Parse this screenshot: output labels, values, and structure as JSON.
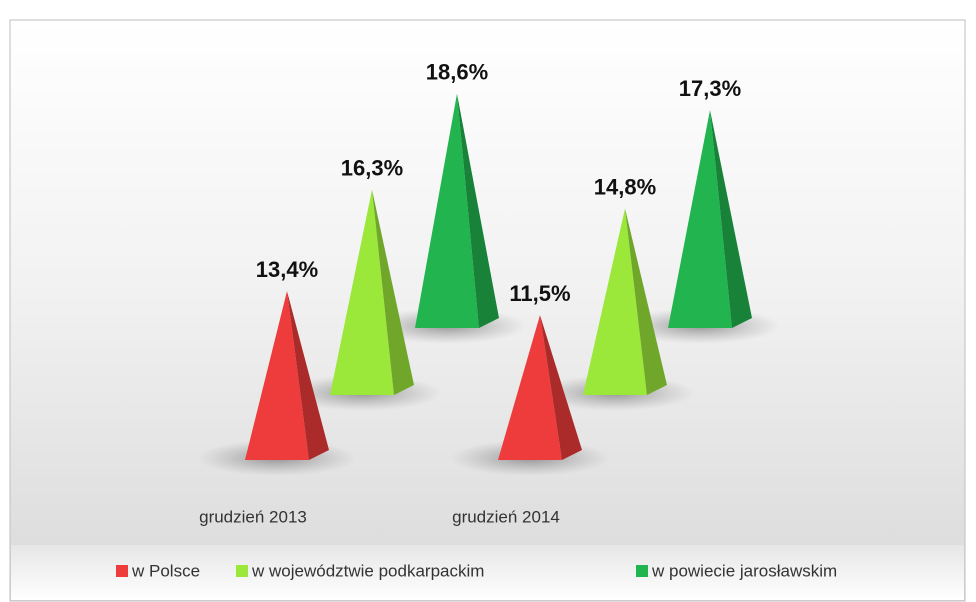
{
  "chart_data": {
    "type": "pyramid3d",
    "categories": [
      "grudzień 2013",
      "grudzień 2014"
    ],
    "series": [
      {
        "name": "w Polsce",
        "color": "#ee3b3b",
        "values": [
          13.4,
          11.5
        ],
        "value_labels": [
          "13,4%",
          "11,5%"
        ]
      },
      {
        "name": "w województwie podkarpackim",
        "color": "#9be83a",
        "values": [
          16.3,
          14.8
        ],
        "value_labels": [
          "16,3%",
          "14,8%"
        ]
      },
      {
        "name": "w powiecie jarosławskim",
        "color": "#21b44f",
        "values": [
          18.6,
          17.3
        ],
        "value_labels": [
          "18,6%",
          "17,3%"
        ]
      }
    ],
    "legend": "bottom"
  }
}
